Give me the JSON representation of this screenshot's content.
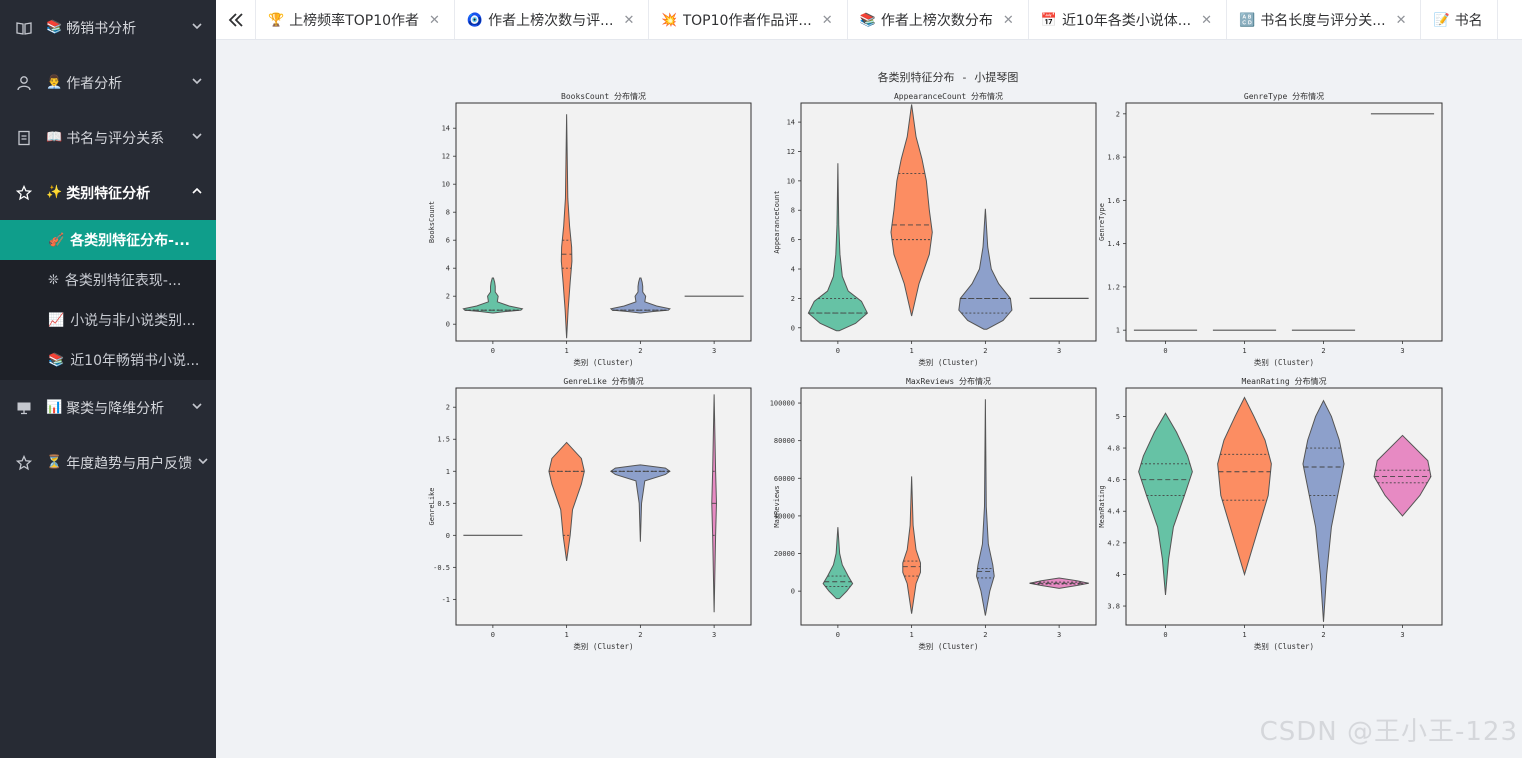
{
  "sidebar": {
    "menus": [
      {
        "label": "畅销书分析",
        "emoji": "📚",
        "icon": "book-open-icon",
        "open": false
      },
      {
        "label": "作者分析",
        "emoji": "👨‍💼",
        "icon": "user-icon",
        "open": false
      },
      {
        "label": "书名与评分关系",
        "emoji": "📖",
        "icon": "document-icon",
        "open": false
      },
      {
        "label": "类别特征分析",
        "emoji": "✨",
        "icon": "star-icon",
        "open": true,
        "children": [
          {
            "label": "各类别特征分布-...",
            "emoji": "🎻",
            "active": true
          },
          {
            "label": "各类别特征表现-...",
            "emoji": "❊",
            "active": false
          },
          {
            "label": "小说与非小说类别...",
            "emoji": "📈",
            "active": false
          },
          {
            "label": "近10年畅销书小说...",
            "emoji": "📚",
            "active": false
          }
        ]
      },
      {
        "label": "聚类与降维分析",
        "emoji": "📊",
        "icon": "monitor-icon",
        "open": false
      },
      {
        "label": "年度趋势与用户反馈",
        "emoji": "⏳",
        "icon": "star-icon",
        "open": false
      }
    ]
  },
  "tabs": [
    {
      "label": "上榜频率TOP10作者",
      "emoji": "🏆"
    },
    {
      "label": "作者上榜次数与评...",
      "emoji": "🧿"
    },
    {
      "label": "TOP10作者作品评...",
      "emoji": "💥"
    },
    {
      "label": "作者上榜次数分布",
      "emoji": "📚"
    },
    {
      "label": "近10年各类小说体...",
      "emoji": "📅"
    },
    {
      "label": "书名长度与评分关...",
      "emoji": "🔠"
    },
    {
      "label": "书名",
      "emoji": "📝"
    }
  ],
  "watermark": "CSDN @王小王-123",
  "colors": {
    "c0": "#66c2a5",
    "c1": "#fc8d62",
    "c2": "#8da0cb",
    "c3": "#e78ac3",
    "panel": "#f2f2f2",
    "active": "#0f9e8b"
  },
  "chart_data": {
    "type": "violin",
    "title": "各类别特征分布 - 小提琴图",
    "xlabel": "类别 (Cluster)",
    "categories": [
      "0",
      "1",
      "2",
      "3"
    ],
    "panels": [
      {
        "title": "BooksCount 分布情况",
        "ylabel": "BooksCount",
        "ylim": [
          -1.2,
          15.8
        ],
        "yticks": [
          0,
          2,
          4,
          6,
          8,
          10,
          12,
          14
        ],
        "violins": [
          {
            "cluster": "0",
            "min": 0.8,
            "max": 3.3,
            "median": 1,
            "q1": 1,
            "q3": 1,
            "profile": [
              [
                0.8,
                0.02
              ],
              [
                0.9,
                0.4
              ],
              [
                1.0,
                0.95
              ],
              [
                1.1,
                1.0
              ],
              [
                1.3,
                0.55
              ],
              [
                1.6,
                0.15
              ],
              [
                2.0,
                0.18
              ],
              [
                2.3,
                0.08
              ],
              [
                2.7,
                0.08
              ],
              [
                3.0,
                0.06
              ],
              [
                3.3,
                0.02
              ]
            ]
          },
          {
            "cluster": "1",
            "min": -1.0,
            "max": 15.0,
            "median": 5,
            "q1": 4,
            "q3": 6,
            "profile": [
              [
                -1.0,
                0.0
              ],
              [
                1.0,
                0.05
              ],
              [
                3.0,
                0.12
              ],
              [
                4.5,
                0.18
              ],
              [
                5.5,
                0.17
              ],
              [
                7.0,
                0.1
              ],
              [
                9.0,
                0.04
              ],
              [
                12.0,
                0.02
              ],
              [
                15.0,
                0.0
              ]
            ]
          },
          {
            "cluster": "2",
            "min": 0.8,
            "max": 3.3,
            "median": 1,
            "q1": 1,
            "q3": 1,
            "profile": [
              [
                0.8,
                0.02
              ],
              [
                0.9,
                0.4
              ],
              [
                1.0,
                0.95
              ],
              [
                1.1,
                1.0
              ],
              [
                1.3,
                0.55
              ],
              [
                1.6,
                0.15
              ],
              [
                2.0,
                0.18
              ],
              [
                2.3,
                0.08
              ],
              [
                2.7,
                0.08
              ],
              [
                3.0,
                0.06
              ],
              [
                3.3,
                0.02
              ]
            ]
          },
          {
            "cluster": "3",
            "min": 2,
            "max": 2,
            "median": 2,
            "q1": 2,
            "q3": 2,
            "profile": []
          }
        ]
      },
      {
        "title": "AppearanceCount 分布情况",
        "ylabel": "AppearanceCount",
        "ylim": [
          -0.9,
          15.3
        ],
        "yticks": [
          0,
          2,
          4,
          6,
          8,
          10,
          12,
          14
        ],
        "violins": [
          {
            "cluster": "0",
            "min": -0.2,
            "max": 11.2,
            "median": 1,
            "q1": 1,
            "q3": 2,
            "profile": [
              [
                -0.2,
                0.05
              ],
              [
                0.3,
                0.6
              ],
              [
                1.0,
                1.0
              ],
              [
                1.8,
                0.8
              ],
              [
                2.5,
                0.35
              ],
              [
                3.5,
                0.15
              ],
              [
                5.0,
                0.07
              ],
              [
                7.0,
                0.03
              ],
              [
                9.0,
                0.015
              ],
              [
                11.2,
                0.0
              ]
            ]
          },
          {
            "cluster": "1",
            "min": 0.8,
            "max": 15.2,
            "median": 7,
            "q1": 6,
            "q3": 10.5,
            "profile": [
              [
                0.8,
                0.0
              ],
              [
                3.0,
                0.25
              ],
              [
                5.0,
                0.6
              ],
              [
                6.5,
                0.7
              ],
              [
                8.0,
                0.6
              ],
              [
                10.0,
                0.5
              ],
              [
                11.5,
                0.35
              ],
              [
                13.0,
                0.15
              ],
              [
                15.2,
                0.0
              ]
            ]
          },
          {
            "cluster": "2",
            "min": -0.1,
            "max": 8.1,
            "median": 2,
            "q1": 1,
            "q3": 2,
            "profile": [
              [
                -0.1,
                0.05
              ],
              [
                0.5,
                0.6
              ],
              [
                1.2,
                0.9
              ],
              [
                2.0,
                0.85
              ],
              [
                3.0,
                0.45
              ],
              [
                4.0,
                0.2
              ],
              [
                5.5,
                0.08
              ],
              [
                8.1,
                0.0
              ]
            ]
          },
          {
            "cluster": "3",
            "min": 2,
            "max": 2,
            "median": 2,
            "q1": 2,
            "q3": 2,
            "profile": []
          }
        ]
      },
      {
        "title": "GenreType 分布情况",
        "ylabel": "GenreType",
        "ylim": [
          0.95,
          2.05
        ],
        "yticks": [
          1.0,
          1.2,
          1.4,
          1.6,
          1.8,
          2.0
        ],
        "violins": [
          {
            "cluster": "0",
            "min": 1,
            "max": 1,
            "median": 1,
            "q1": 1,
            "q3": 1,
            "profile": []
          },
          {
            "cluster": "1",
            "min": 1,
            "max": 1,
            "median": 1,
            "q1": 1,
            "q3": 1,
            "profile": []
          },
          {
            "cluster": "2",
            "min": 1,
            "max": 1,
            "median": 1,
            "q1": 1,
            "q3": 1,
            "profile": []
          },
          {
            "cluster": "3",
            "min": 2,
            "max": 2,
            "median": 2,
            "q1": 2,
            "q3": 2,
            "profile": []
          }
        ]
      },
      {
        "title": "GenreLike 分布情况",
        "ylabel": "GenreLike",
        "ylim": [
          -1.4,
          2.3
        ],
        "yticks": [
          -1.0,
          -0.5,
          0.0,
          0.5,
          1.0,
          1.5,
          2.0
        ],
        "violins": [
          {
            "cluster": "0",
            "min": 0,
            "max": 0,
            "median": 0,
            "q1": 0,
            "q3": 0,
            "profile": []
          },
          {
            "cluster": "1",
            "min": -0.4,
            "max": 1.45,
            "median": 1.0,
            "q1": 0.0,
            "q3": 1.0,
            "profile": [
              [
                -0.4,
                0.0
              ],
              [
                0.0,
                0.12
              ],
              [
                0.4,
                0.2
              ],
              [
                0.8,
                0.5
              ],
              [
                1.0,
                0.6
              ],
              [
                1.2,
                0.5
              ],
              [
                1.45,
                0.0
              ]
            ]
          },
          {
            "cluster": "2",
            "min": -0.1,
            "max": 1.1,
            "median": 1.0,
            "q1": 1.0,
            "q3": 1.0,
            "profile": [
              [
                -0.1,
                0.0
              ],
              [
                0.5,
                0.04
              ],
              [
                0.85,
                0.15
              ],
              [
                0.95,
                0.85
              ],
              [
                1.0,
                1.0
              ],
              [
                1.05,
                0.85
              ],
              [
                1.1,
                0.0
              ]
            ]
          },
          {
            "cluster": "3",
            "min": -1.2,
            "max": 2.2,
            "median": 0.5,
            "q1": 0.0,
            "q3": 1.0,
            "profile": [
              [
                -1.2,
                0.0
              ],
              [
                0.0,
                0.05
              ],
              [
                0.5,
                0.08
              ],
              [
                1.0,
                0.05
              ],
              [
                2.2,
                0.0
              ]
            ]
          }
        ]
      },
      {
        "title": "MaxReviews 分布情况",
        "ylabel": "MaxReviews",
        "ylim": [
          -18000,
          108000
        ],
        "yticks": [
          0,
          20000,
          40000,
          60000,
          80000,
          100000
        ],
        "violins": [
          {
            "cluster": "0",
            "min": -4000,
            "max": 34000,
            "median": 5000,
            "q1": 2500,
            "q3": 8000,
            "profile": [
              [
                -4000,
                0.05
              ],
              [
                0,
                0.3
              ],
              [
                4000,
                0.5
              ],
              [
                8000,
                0.35
              ],
              [
                14000,
                0.15
              ],
              [
                20000,
                0.06
              ],
              [
                34000,
                0.0
              ]
            ]
          },
          {
            "cluster": "1",
            "min": -12000,
            "max": 61000,
            "median": 13000,
            "q1": 8000,
            "q3": 16000,
            "profile": [
              [
                -12000,
                0.0
              ],
              [
                4000,
                0.15
              ],
              [
                10000,
                0.3
              ],
              [
                15000,
                0.3
              ],
              [
                22000,
                0.15
              ],
              [
                35000,
                0.05
              ],
              [
                61000,
                0.0
              ]
            ]
          },
          {
            "cluster": "2",
            "min": -13000,
            "max": 102000,
            "median": 10500,
            "q1": 7000,
            "q3": 12000,
            "profile": [
              [
                -13000,
                0.0
              ],
              [
                0,
                0.15
              ],
              [
                8000,
                0.3
              ],
              [
                14000,
                0.25
              ],
              [
                25000,
                0.1
              ],
              [
                45000,
                0.03
              ],
              [
                102000,
                0.0
              ]
            ]
          },
          {
            "cluster": "3",
            "min": 1500,
            "max": 7000,
            "median": 4200,
            "q1": 3800,
            "q3": 4800,
            "profile": [
              [
                1500,
                0.0
              ],
              [
                3000,
                0.6
              ],
              [
                4200,
                1.0
              ],
              [
                5500,
                0.6
              ],
              [
                7000,
                0.0
              ]
            ]
          }
        ]
      },
      {
        "title": "MeanRating 分布情况",
        "ylabel": "MeanRating",
        "ylim": [
          3.68,
          5.18
        ],
        "yticks": [
          3.8,
          4.0,
          4.2,
          4.4,
          4.6,
          4.8,
          5.0
        ],
        "violins": [
          {
            "cluster": "0",
            "min": 3.87,
            "max": 5.02,
            "median": 4.6,
            "q1": 4.5,
            "q3": 4.7,
            "profile": [
              [
                3.87,
                0.0
              ],
              [
                4.1,
                0.1
              ],
              [
                4.3,
                0.25
              ],
              [
                4.5,
                0.6
              ],
              [
                4.65,
                0.85
              ],
              [
                4.75,
                0.7
              ],
              [
                4.9,
                0.35
              ],
              [
                5.02,
                0.0
              ]
            ]
          },
          {
            "cluster": "1",
            "min": 4.0,
            "max": 5.12,
            "median": 4.65,
            "q1": 4.47,
            "q3": 4.76,
            "profile": [
              [
                4.0,
                0.0
              ],
              [
                4.2,
                0.3
              ],
              [
                4.5,
                0.75
              ],
              [
                4.7,
                0.85
              ],
              [
                4.85,
                0.65
              ],
              [
                5.0,
                0.3
              ],
              [
                5.12,
                0.0
              ]
            ]
          },
          {
            "cluster": "2",
            "min": 3.7,
            "max": 5.1,
            "median": 4.68,
            "q1": 4.5,
            "q3": 4.8,
            "profile": [
              [
                3.7,
                0.0
              ],
              [
                4.0,
                0.1
              ],
              [
                4.3,
                0.25
              ],
              [
                4.5,
                0.45
              ],
              [
                4.7,
                0.65
              ],
              [
                4.85,
                0.5
              ],
              [
                5.0,
                0.25
              ],
              [
                5.1,
                0.0
              ]
            ]
          },
          {
            "cluster": "3",
            "min": 4.37,
            "max": 4.88,
            "median": 4.62,
            "q1": 4.58,
            "q3": 4.66,
            "profile": [
              [
                4.37,
                0.0
              ],
              [
                4.5,
                0.55
              ],
              [
                4.62,
                0.9
              ],
              [
                4.72,
                0.8
              ],
              [
                4.88,
                0.0
              ]
            ]
          }
        ]
      }
    ]
  }
}
